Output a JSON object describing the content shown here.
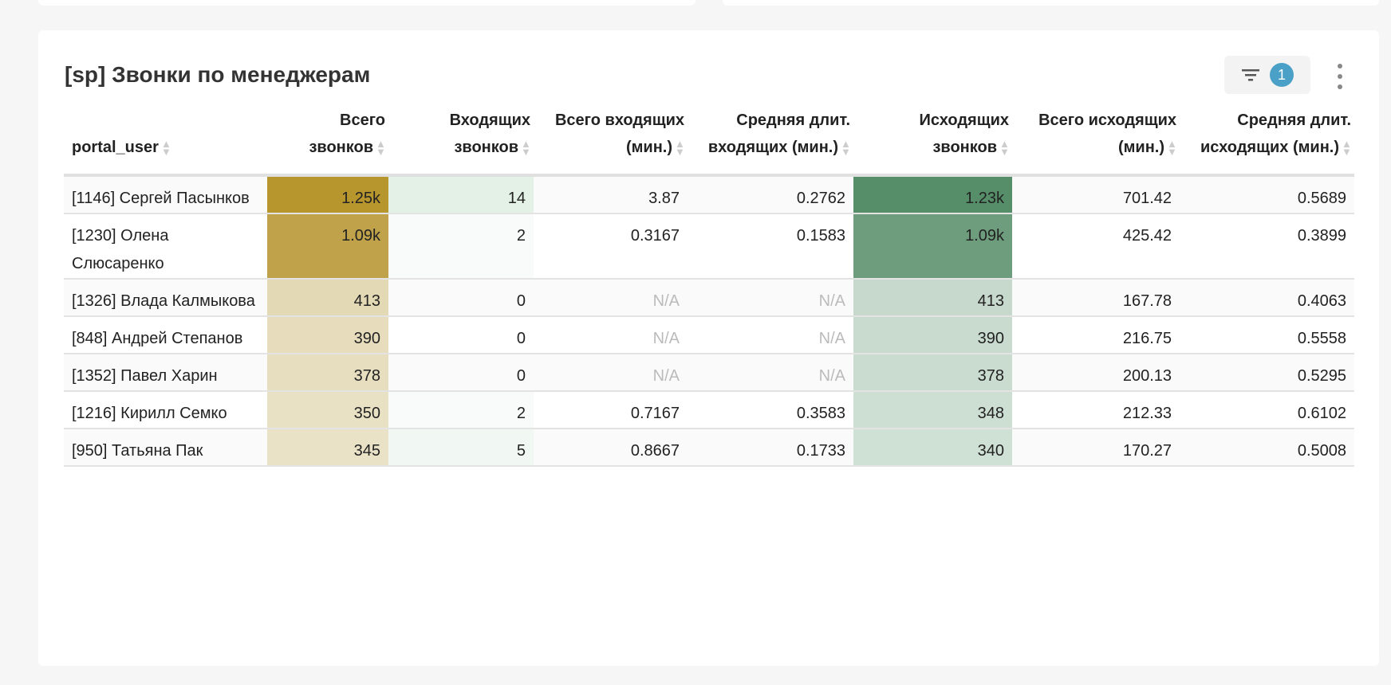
{
  "title": "[sp] Звонки по менеджерам",
  "filter": {
    "count": "1",
    "icon": "filter-icon"
  },
  "menu_icon": "more-vertical-icon",
  "columns": [
    "portal_user",
    "Всего звонков",
    "Входящих звонков",
    "Всего входящих (мин.)",
    "Средняя длит. входящих (мин.)",
    "Исходящих звонков",
    "Всего исходящих (мин.)",
    "Средняя длит. исходящих (мин.)"
  ],
  "rows": [
    {
      "cells": [
        "[1146] Сергей Пасынков",
        "1.25k",
        "14",
        "3.87",
        "0.2762",
        "1.23k",
        "701.42",
        "0.5689"
      ],
      "colors": [
        "#b8962e",
        "#e3f1e7",
        "#558e69"
      ]
    },
    {
      "cells": [
        "[1230] Олена Слюсаренко",
        "1.09k",
        "2",
        "0.3167",
        "0.1583",
        "1.09k",
        "425.42",
        "0.3899"
      ],
      "colors": [
        "#bfa24a",
        "#f8fbf9",
        "#6d9d7c"
      ]
    },
    {
      "cells": [
        "[1326] Влада Калмыкова",
        "413",
        "0",
        "N/A",
        "N/A",
        "413",
        "167.78",
        "0.4063"
      ],
      "colors": [
        "#e4d9b5",
        "",
        "#c7d9cc"
      ]
    },
    {
      "cells": [
        "[848] Андрей Степанов",
        "390",
        "0",
        "N/A",
        "N/A",
        "390",
        "216.75",
        "0.5558"
      ],
      "colors": [
        "#e7ddbd",
        "",
        "#c9dbcf"
      ]
    },
    {
      "cells": [
        "[1352] Павел Харин",
        "378",
        "0",
        "N/A",
        "N/A",
        "378",
        "200.13",
        "0.5295"
      ],
      "colors": [
        "#e7dec0",
        "",
        "#cadcd0"
      ]
    },
    {
      "cells": [
        "[1216] Кирилл Семко",
        "350",
        "2",
        "0.7167",
        "0.3583",
        "348",
        "212.33",
        "0.6102"
      ],
      "colors": [
        "#e9e1c4",
        "#f8fbf9",
        "#cddfd3"
      ]
    },
    {
      "cells": [
        "[950] Татьяна Пак",
        "345",
        "5",
        "0.8667",
        "0.1733",
        "340",
        "170.27",
        "0.5008"
      ],
      "colors": [
        "#eae2c6",
        "#f1f7f3",
        "#cfe0d4"
      ]
    }
  ]
}
